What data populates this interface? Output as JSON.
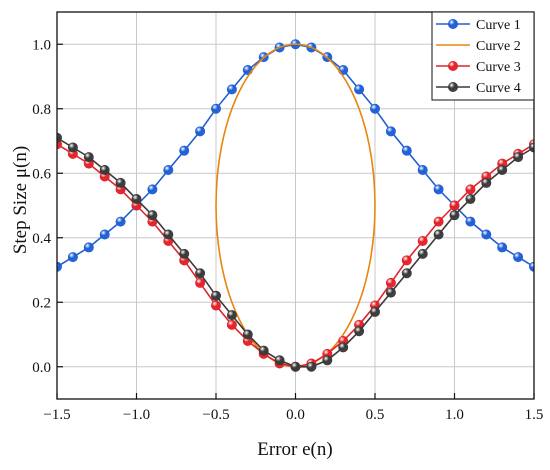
{
  "chart_data": {
    "type": "line",
    "title": "",
    "xlabel": "Error e(n)",
    "ylabel": "Step Size μ(n)",
    "xlim": [
      -1.5,
      1.5
    ],
    "ylim": [
      -0.1,
      1.1
    ],
    "xticks": [
      -1.5,
      -1.0,
      -0.5,
      0.0,
      0.5,
      1.0,
      1.5
    ],
    "yticks": [
      0.0,
      0.2,
      0.4,
      0.6,
      0.8,
      1.0
    ],
    "grid": true,
    "legend_position": "top-right",
    "series": [
      {
        "name": "Curve 1",
        "color": "#1f5fd6",
        "marker": "sphere",
        "x": [
          -1.5,
          -1.4,
          -1.3,
          -1.2,
          -1.1,
          -1.0,
          -0.9,
          -0.8,
          -0.7,
          -0.6,
          -0.5,
          -0.4,
          -0.3,
          -0.2,
          -0.1,
          0.0,
          0.1,
          0.2,
          0.3,
          0.4,
          0.5,
          0.6,
          0.7,
          0.8,
          0.9,
          1.0,
          1.1,
          1.2,
          1.3,
          1.4,
          1.5
        ],
        "y": [
          0.31,
          0.34,
          0.37,
          0.41,
          0.45,
          0.5,
          0.55,
          0.61,
          0.67,
          0.73,
          0.8,
          0.86,
          0.92,
          0.96,
          0.99,
          1.0,
          0.99,
          0.96,
          0.92,
          0.86,
          0.8,
          0.73,
          0.67,
          0.61,
          0.55,
          0.5,
          0.45,
          0.41,
          0.37,
          0.34,
          0.31
        ]
      },
      {
        "name": "Curve 2",
        "color": "#e8850c",
        "marker": "none",
        "shape": "ellipse",
        "center": [
          0.0,
          0.5
        ],
        "radius_x": 0.5,
        "radius_y": 0.5
      },
      {
        "name": "Curve 3",
        "color": "#e3222a",
        "marker": "sphere",
        "x": [
          -1.5,
          -1.4,
          -1.3,
          -1.2,
          -1.1,
          -1.0,
          -0.9,
          -0.8,
          -0.7,
          -0.6,
          -0.5,
          -0.4,
          -0.3,
          -0.2,
          -0.1,
          0.0,
          0.1,
          0.2,
          0.3,
          0.4,
          0.5,
          0.6,
          0.7,
          0.8,
          0.9,
          1.0,
          1.1,
          1.2,
          1.3,
          1.4,
          1.5
        ],
        "y": [
          0.69,
          0.66,
          0.63,
          0.59,
          0.55,
          0.5,
          0.45,
          0.39,
          0.33,
          0.26,
          0.19,
          0.13,
          0.08,
          0.04,
          0.01,
          0.0,
          0.01,
          0.04,
          0.08,
          0.13,
          0.19,
          0.26,
          0.33,
          0.39,
          0.45,
          0.5,
          0.55,
          0.59,
          0.63,
          0.66,
          0.69
        ]
      },
      {
        "name": "Curve 4",
        "color": "#3a3a3a",
        "marker": "sphere",
        "x": [
          -1.5,
          -1.4,
          -1.3,
          -1.2,
          -1.1,
          -1.0,
          -0.9,
          -0.8,
          -0.7,
          -0.6,
          -0.5,
          -0.4,
          -0.3,
          -0.2,
          -0.1,
          0.0,
          0.1,
          0.2,
          0.3,
          0.4,
          0.5,
          0.6,
          0.7,
          0.8,
          0.9,
          1.0,
          1.1,
          1.2,
          1.3,
          1.4,
          1.5
        ],
        "y": [
          0.71,
          0.68,
          0.65,
          0.61,
          0.57,
          0.52,
          0.47,
          0.41,
          0.35,
          0.29,
          0.22,
          0.16,
          0.1,
          0.05,
          0.02,
          0.0,
          0.0,
          0.02,
          0.06,
          0.11,
          0.17,
          0.23,
          0.29,
          0.35,
          0.41,
          0.47,
          0.52,
          0.57,
          0.61,
          0.65,
          0.68
        ]
      }
    ]
  }
}
